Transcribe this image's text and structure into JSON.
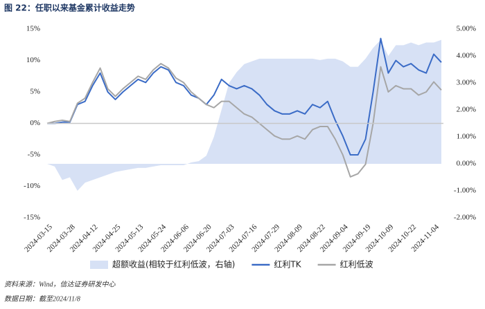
{
  "chart_data": {
    "type": "line",
    "title": "图 22：任职以来基金累计收益走势",
    "source": "资料来源：Wind，信达证券研发中心",
    "date_note": "数据日期：截至2024/11/8",
    "categories": [
      "2024-03-15",
      null,
      null,
      "2024-03-28",
      null,
      null,
      "2024-04-12",
      null,
      null,
      "2024-04-25",
      null,
      null,
      "2024-05-13",
      null,
      null,
      "2024-05-24",
      null,
      null,
      "2024-06-06",
      null,
      null,
      "2024-06-20",
      null,
      null,
      "2024-07-03",
      null,
      null,
      "2024-07-16",
      null,
      null,
      "2024-07-29",
      null,
      null,
      "2024-08-09",
      null,
      null,
      "2024-08-22",
      null,
      null,
      "2024-09-04",
      null,
      null,
      "2024-09-19",
      null,
      null,
      "2024-10-09",
      null,
      null,
      "2024-10-22",
      null,
      null,
      "2024-11-04",
      null
    ],
    "series": [
      {
        "name": "超额收益(相较于红利低波，右轴)",
        "type": "area",
        "axis": "y2",
        "color": "#d7e1f5",
        "values": [
          0,
          -0.1,
          -0.6,
          -0.5,
          -1.0,
          -0.7,
          -0.6,
          -0.5,
          -0.4,
          -0.3,
          -0.25,
          -0.2,
          -0.15,
          -0.15,
          -0.1,
          -0.05,
          -0.05,
          -0.05,
          -0.05,
          0.05,
          0.1,
          0.3,
          1.0,
          2.0,
          3.0,
          3.4,
          3.7,
          3.8,
          3.9,
          3.9,
          3.9,
          3.9,
          3.9,
          3.9,
          3.9,
          3.9,
          3.85,
          3.9,
          3.9,
          3.8,
          3.6,
          3.6,
          3.9,
          4.3,
          4.6,
          4.0,
          4.4,
          4.4,
          4.5,
          4.4,
          4.5,
          4.5,
          4.6
        ]
      },
      {
        "name": "红利TK",
        "type": "line",
        "color": "#3a6bc6",
        "values": [
          0,
          0,
          0.2,
          0.2,
          3.0,
          3.5,
          6.0,
          8.0,
          5.0,
          3.8,
          5.0,
          6.0,
          7.0,
          6.5,
          8.0,
          9.0,
          8.5,
          6.5,
          6.0,
          4.5,
          4.0,
          3.0,
          4.5,
          7.0,
          6.0,
          5.5,
          6.0,
          5.5,
          4.5,
          3.0,
          2.0,
          1.5,
          1.5,
          2.0,
          1.5,
          3.0,
          2.5,
          3.5,
          0.5,
          -2.0,
          -5.0,
          -5.0,
          -2.5,
          5.0,
          13.5,
          8.0,
          10.0,
          9.0,
          9.5,
          8.5,
          8.0,
          11.0,
          9.7
        ]
      },
      {
        "name": "红利低波",
        "type": "line",
        "color": "#a6a6a6",
        "values": [
          0,
          0.3,
          0.5,
          0.3,
          3.2,
          4.0,
          6.5,
          8.8,
          5.5,
          4.3,
          5.5,
          6.5,
          7.5,
          7.0,
          8.5,
          9.5,
          8.8,
          7.2,
          6.5,
          5.0,
          4.0,
          3.0,
          2.5,
          3.5,
          3.5,
          2.5,
          1.5,
          1.0,
          0,
          -1.0,
          -2.0,
          -2.5,
          -2.5,
          -2.0,
          -2.5,
          -1.0,
          -0.5,
          -0.5,
          -2.5,
          -5.0,
          -8.5,
          -8.0,
          -6.5,
          0,
          9.0,
          5.0,
          6.0,
          5.5,
          5.5,
          4.5,
          5.0,
          6.6,
          5.3
        ]
      }
    ],
    "ylim": [
      -15,
      15
    ],
    "yticks": [
      {
        "value": -15,
        "label": "-15%"
      },
      {
        "value": -10,
        "label": "-10%"
      },
      {
        "value": -5,
        "label": "-5%"
      },
      {
        "value": 0,
        "label": "0%"
      },
      {
        "value": 5,
        "label": "5%"
      },
      {
        "value": 10,
        "label": "10%"
      },
      {
        "value": 15,
        "label": "15%"
      }
    ],
    "y2lim": [
      -2,
      5
    ],
    "y2ticks": [
      {
        "value": -2,
        "label": "-2.00%"
      },
      {
        "value": -1,
        "label": "-1.00%"
      },
      {
        "value": 0,
        "label": "0.00%"
      },
      {
        "value": 1,
        "label": "1.00%"
      },
      {
        "value": 2,
        "label": "2.00%"
      },
      {
        "value": 3,
        "label": "3.00%"
      },
      {
        "value": 4,
        "label": "4.00%"
      },
      {
        "value": 5,
        "label": "5.00%"
      }
    ]
  }
}
